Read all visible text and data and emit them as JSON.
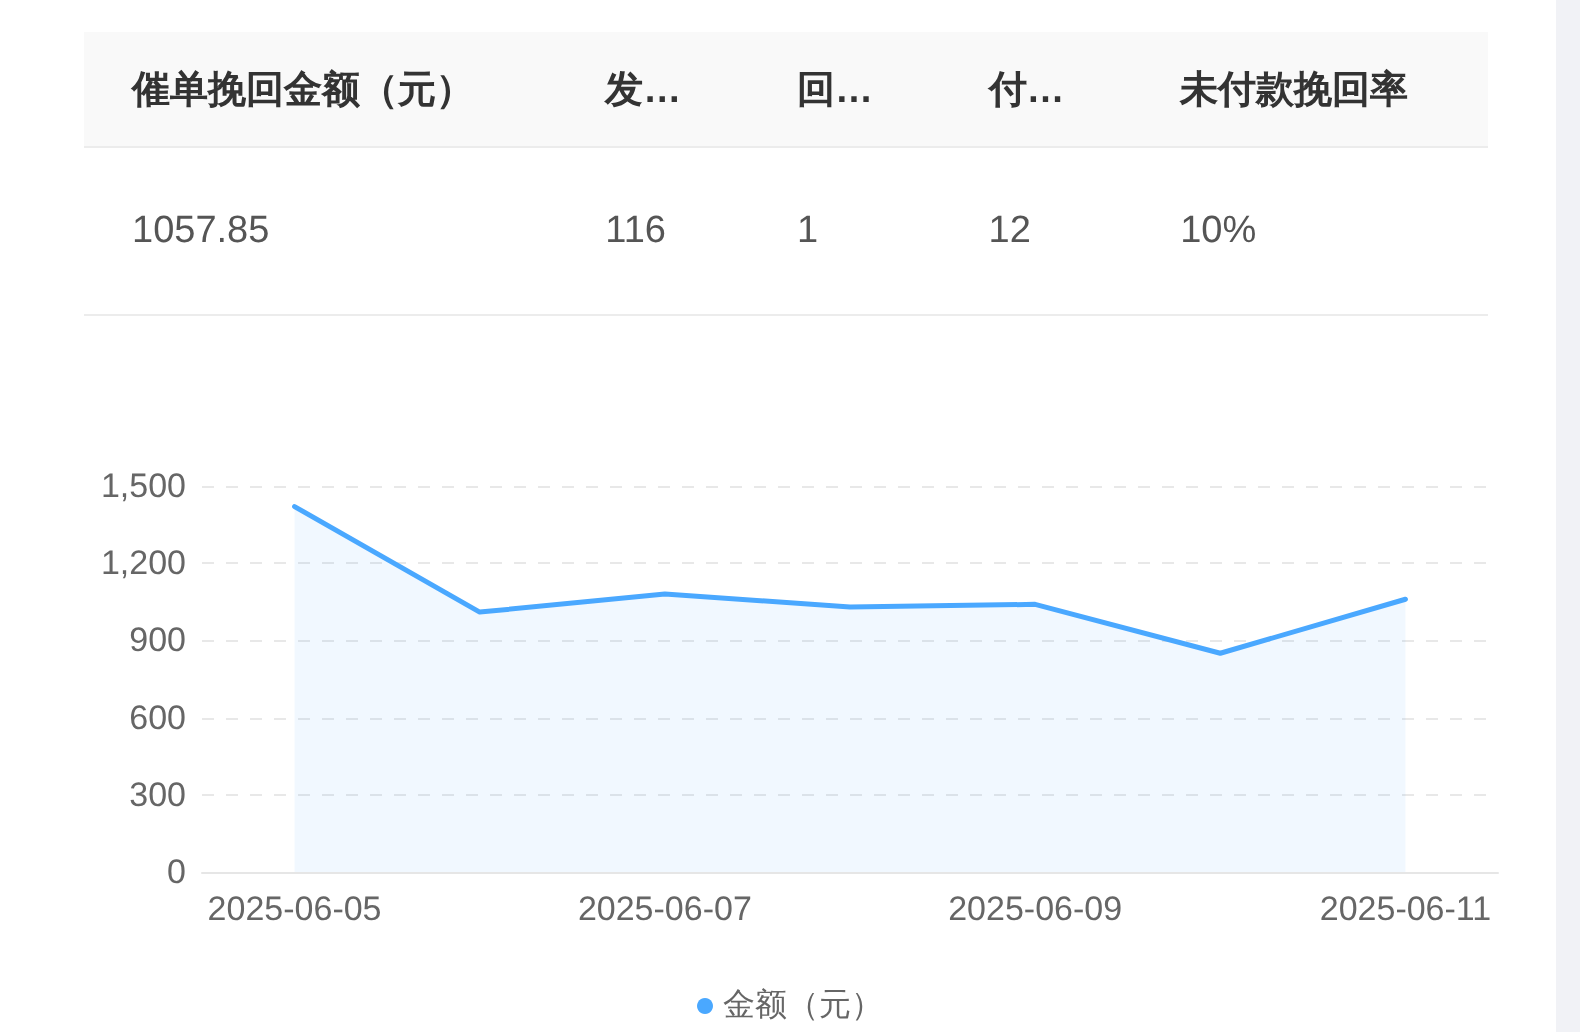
{
  "chart_data": [
    {
      "type": "other",
      "categories": [
        "催单挽回金额（元）",
        "发…",
        "回…",
        "付…",
        "未付款挽回率"
      ],
      "value_labels": [
        "1057.85",
        "116",
        "1",
        "12",
        "10%"
      ]
    },
    {
      "type": "area",
      "categories": [
        "2025-06-05",
        null,
        "2025-06-07",
        null,
        "2025-06-09",
        null,
        "2025-06-11"
      ],
      "series": [
        {
          "name": "金额（元）",
          "color": "#4aa8ff",
          "values": [
            1420,
            1010,
            1080,
            1030,
            1040,
            850,
            1060
          ]
        }
      ],
      "ylim": [
        0,
        1500
      ],
      "yticks": [
        0,
        300,
        600,
        900,
        {
          "value": 1200,
          "label": "1,200"
        },
        {
          "value": 1500,
          "label": "1,500"
        }
      ],
      "grid": "y",
      "legend": "bottom",
      "marker": "none",
      "line_style": "solid"
    }
  ]
}
